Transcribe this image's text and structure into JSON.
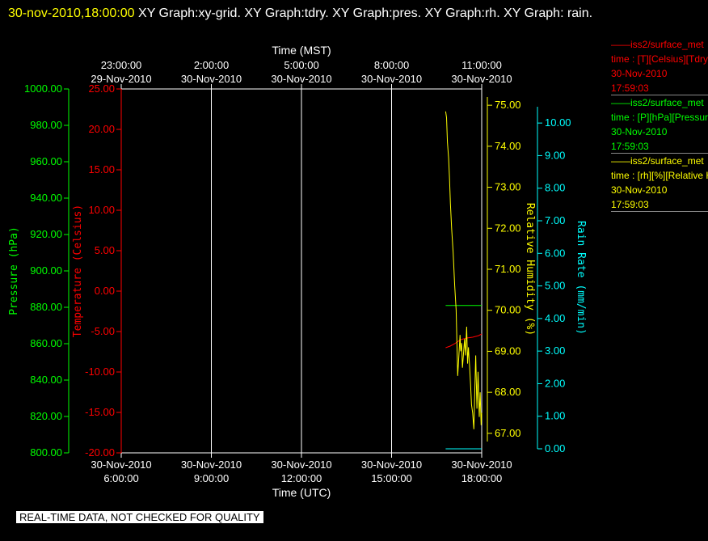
{
  "title": {
    "timestamp": "30-nov-2010,18:00:00",
    "text": "XY Graph:xy-grid.  XY Graph:tdry.  XY Graph:pres.  XY Graph:rh.  XY Graph: rain."
  },
  "colors": {
    "background": "#000000",
    "frame": "#ffffff",
    "grid": "#ffffff",
    "pressure": "#00ff00",
    "temperature": "#ff0000",
    "humidity": "#ffff00",
    "rain": "#00ffff",
    "timestamp": "#ffff00"
  },
  "chart_data": {
    "type": "line",
    "grid": true,
    "xlabel_top": "Time (MST)",
    "xlabel_bottom": "Time (UTC)",
    "x_top_ticks": [
      [
        "23:00:00",
        "29-Nov-2010"
      ],
      [
        "2:00:00",
        "30-Nov-2010"
      ],
      [
        "5:00:00",
        "30-Nov-2010"
      ],
      [
        "8:00:00",
        "30-Nov-2010"
      ],
      [
        "11:00:00",
        "30-Nov-2010"
      ]
    ],
    "x_bottom_ticks": [
      [
        "30-Nov-2010",
        "6:00:00"
      ],
      [
        "30-Nov-2010",
        "9:00:00"
      ],
      [
        "30-Nov-2010",
        "12:00:00"
      ],
      [
        "30-Nov-2010",
        "15:00:00"
      ],
      [
        "30-Nov-2010",
        "18:00:00"
      ]
    ],
    "x_tick_hours_utc": [
      6,
      9,
      12,
      15,
      18
    ],
    "xlim_hours_utc": [
      6,
      18
    ],
    "axes": {
      "pressure": {
        "label": "Pressure (hPa)",
        "ylim": [
          800,
          1000
        ],
        "ticks": [
          "1000.00",
          "980.00",
          "960.00",
          "940.00",
          "920.00",
          "900.00",
          "880.00",
          "860.00",
          "840.00",
          "820.00",
          "800.00"
        ]
      },
      "temperature": {
        "label": "Temperature (Celsius)",
        "ylim": [
          -20,
          25
        ],
        "ticks": [
          "25.00",
          "20.00",
          "15.00",
          "10.00",
          "5.00",
          "0.00",
          "-5.00",
          "-10.00",
          "-15.00",
          "-20.00"
        ]
      },
      "humidity": {
        "label": "Relative Humidity (%)",
        "ylim": [
          66.8,
          75.2
        ],
        "ticks": [
          "75.00",
          "74.00",
          "73.00",
          "72.00",
          "71.00",
          "70.00",
          "69.00",
          "68.00",
          "67.00"
        ]
      },
      "rain": {
        "label": "Rain Rate (mm/min)",
        "ylim": [
          0,
          10.5
        ],
        "ticks": [
          "10.00",
          "9.00",
          "8.00",
          "7.00",
          "6.00",
          "5.00",
          "4.00",
          "3.00",
          "2.00",
          "1.00",
          "0.00"
        ]
      }
    },
    "series": [
      {
        "name": "temperature",
        "axis": "temperature",
        "x": [
          16.8,
          16.95,
          17.1,
          17.3,
          17.5,
          17.7,
          17.9,
          18.0
        ],
        "y": [
          -7.0,
          -6.8,
          -6.5,
          -6.0,
          -5.8,
          -5.7,
          -5.5,
          -5.3
        ]
      },
      {
        "name": "pressure",
        "axis": "pressure",
        "x": [
          16.8,
          17.0,
          17.2,
          17.4,
          17.6,
          17.8,
          18.0
        ],
        "y": [
          881,
          881,
          881,
          881,
          881,
          881,
          881
        ]
      },
      {
        "name": "relative humidity",
        "axis": "humidity",
        "x": [
          16.8,
          16.83,
          16.86,
          16.9,
          16.93,
          16.96,
          17.0,
          17.05,
          17.1,
          17.15,
          17.2,
          17.24,
          17.28,
          17.3,
          17.33,
          17.36,
          17.4,
          17.43,
          17.46,
          17.5,
          17.53,
          17.56,
          17.6,
          17.63,
          17.66,
          17.7,
          17.74,
          17.78,
          17.8,
          17.84,
          17.88,
          17.92,
          17.95,
          17.98,
          18.0
        ],
        "y": [
          74.85,
          74.7,
          74.1,
          73.7,
          73.2,
          72.6,
          72.0,
          71.4,
          70.6,
          70.0,
          68.4,
          68.9,
          69.4,
          69.0,
          69.2,
          68.6,
          69.0,
          69.3,
          68.9,
          69.6,
          68.7,
          69.1,
          68.6,
          68.2,
          67.7,
          67.5,
          67.1,
          68.3,
          68.9,
          67.6,
          68.5,
          67.4,
          68.0,
          67.2,
          67.5
        ]
      },
      {
        "name": "rain rate",
        "axis": "rain",
        "x": [
          16.8,
          18.0
        ],
        "y": [
          0.0,
          0.0
        ]
      }
    ]
  },
  "legend": [
    {
      "line1": "iss2/surface_met",
      "line2": "time : [T][Celsius][Tdry]",
      "date": "30-Nov-2010",
      "time": "17:59:03",
      "color": "#ff0000"
    },
    {
      "line1": "iss2/surface_met",
      "line2": "time : [P][hPa][Pressure]",
      "date": "30-Nov-2010",
      "time": "17:59:03",
      "color": "#00ff00"
    },
    {
      "line1": "iss2/surface_met",
      "line2": "time : [rh][%][Relative Humidity]",
      "date": "30-Nov-2010",
      "time": "17:59:03",
      "color": "#ffff00"
    }
  ],
  "disclaimer": "REAL-TIME DATA, NOT CHECKED FOR QUALITY"
}
